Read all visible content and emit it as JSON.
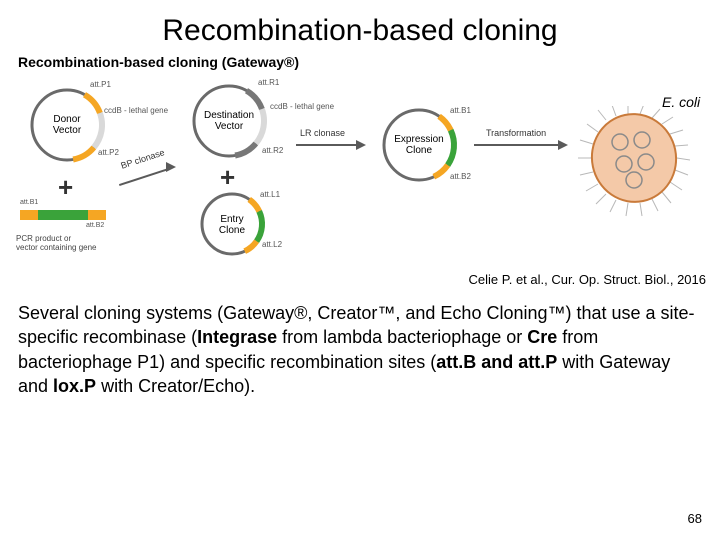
{
  "title": "Recombination-based cloning",
  "subtitle": "Recombination-based cloning (Gateway®)",
  "citation": "Celie P. et al., Cur. Op. Struct. Biol., 2016",
  "body_html": "Several cloning systems (Gateway®, Creator™, and Echo Cloning™) that use a site-specific recombinase (<b>Integrase</b> from lambda bacteriophage or <b>Cre</b> from bacteriophage P1) and specific recombination sites (<b>att.B and att.P</b> with Gateway and <b>lox.P</b> with Creator/Echo).",
  "page_number": "68",
  "diagram": {
    "plasmids": {
      "donor": {
        "name": "Donor\nVector",
        "ring_stroke": "#6a6a6a",
        "ring_w": 3,
        "r": 35,
        "segments": [
          {
            "label": "att.P1",
            "color": "#f5a623",
            "start": -60,
            "end": -20
          },
          {
            "label": "ccdB - lethal gene",
            "color": "#d9d9d9",
            "start": -20,
            "end": 40
          },
          {
            "label": "att.P2",
            "color": "#f5a623",
            "start": 40,
            "end": 80
          }
        ]
      },
      "destination": {
        "name": "Destination\nVector",
        "ring_stroke": "#6a6a6a",
        "ring_w": 3,
        "r": 35,
        "segments": [
          {
            "label": "att.R1",
            "color": "#777777",
            "start": -60,
            "end": -20
          },
          {
            "label": "ccdB - lethal gene",
            "color": "#d9d9d9",
            "start": -20,
            "end": 40
          },
          {
            "label": "att.R2",
            "color": "#777777",
            "start": 40,
            "end": 80
          }
        ]
      },
      "entry": {
        "name": "Entry\nClone",
        "ring_stroke": "#6a6a6a",
        "ring_w": 3,
        "r": 30,
        "segments": [
          {
            "label": "att.L1",
            "color": "#f5a623",
            "start": -55,
            "end": -25
          },
          {
            "label": "",
            "color": "#3aa33a",
            "start": -25,
            "end": 35
          },
          {
            "label": "att.L2",
            "color": "#f5a623",
            "start": 35,
            "end": 65
          }
        ]
      },
      "expression": {
        "name": "Expression\nClone",
        "ring_stroke": "#6a6a6a",
        "ring_w": 3,
        "r": 35,
        "segments": [
          {
            "label": "att.B1",
            "color": "#f5a623",
            "start": -55,
            "end": -25
          },
          {
            "label": "",
            "color": "#3aa33a",
            "start": -25,
            "end": 35
          },
          {
            "label": "att.B2",
            "color": "#f5a623",
            "start": 35,
            "end": 65
          }
        ]
      }
    },
    "pcr": {
      "caption": "PCR product or\nvector containing gene",
      "segs": [
        {
          "color": "#f5a623",
          "w": 18,
          "label": "att.B1"
        },
        {
          "color": "#3aa33a",
          "w": 50,
          "label": ""
        },
        {
          "color": "#f5a623",
          "w": 18,
          "label": "att.B2"
        }
      ]
    },
    "arrows": {
      "bp": "BP clonase",
      "lr": "LR clonase",
      "transform": "Transformation"
    },
    "ecoli": {
      "label": "E. coli",
      "body_fill": "#f4c9a8",
      "body_stroke": "#c97a3a",
      "plasmid_stroke": "#8a8a8a"
    }
  }
}
